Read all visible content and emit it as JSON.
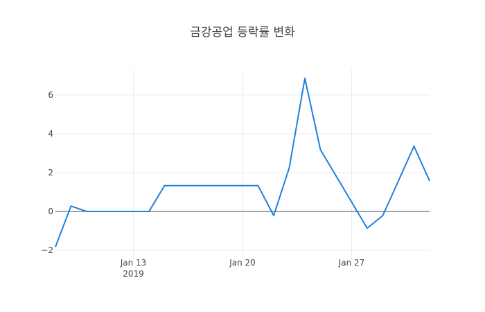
{
  "chart_data": {
    "type": "line",
    "title": "금강공업 등락률 변화",
    "xlabel": "",
    "ylabel": "",
    "x": [
      "2019-01-08",
      "2019-01-09",
      "2019-01-10",
      "2019-01-11",
      "2019-01-14",
      "2019-01-15",
      "2019-01-16",
      "2019-01-17",
      "2019-01-18",
      "2019-01-21",
      "2019-01-22",
      "2019-01-23",
      "2019-01-24",
      "2019-01-25",
      "2019-01-28",
      "2019-01-29",
      "2019-01-30",
      "2019-01-31",
      "2019-02-01"
    ],
    "series": [
      {
        "name": "등락률",
        "color": "#1f7fe0",
        "values": [
          -1.82,
          0.28,
          0.0,
          0.0,
          0.0,
          1.33,
          1.33,
          1.33,
          1.33,
          1.33,
          -0.21,
          2.25,
          6.86,
          3.18,
          -0.86,
          -0.21,
          1.57,
          3.36,
          1.57
        ]
      }
    ],
    "xticks": [
      {
        "date": "2019-01-13",
        "label": "Jan 13",
        "sublabel": "2019"
      },
      {
        "date": "2019-01-20",
        "label": "Jan 20",
        "sublabel": ""
      },
      {
        "date": "2019-01-27",
        "label": "Jan 27",
        "sublabel": ""
      }
    ],
    "yticks": [
      -2,
      0,
      2,
      4,
      6
    ],
    "ylim": [
      -2.2,
      7.2
    ],
    "xlim": [
      "2019-01-08",
      "2019-02-01"
    ],
    "grid": true,
    "zeroline": true,
    "legend": "none"
  }
}
